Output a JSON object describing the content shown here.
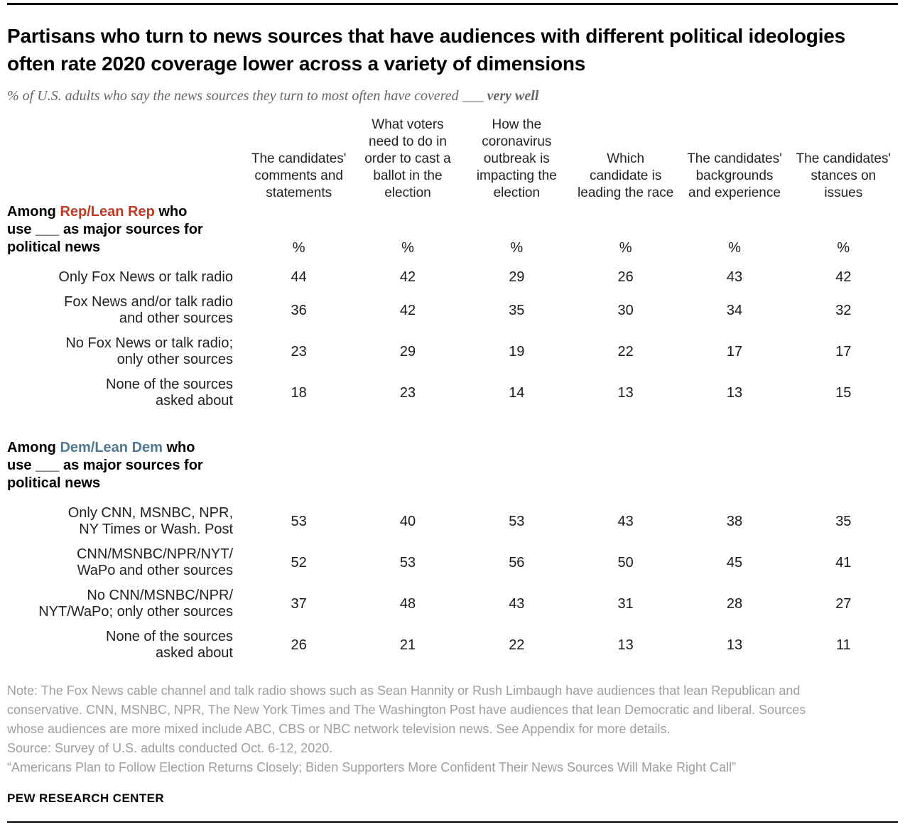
{
  "header": {
    "title": "Partisans who turn to news sources that have audiences with different political ideologies often rate 2020 coverage lower across a variety of dimensions",
    "subtitle_prefix": "% of U.S. adults who say the news sources they turn to most often have covered",
    "subtitle_blank": "___",
    "subtitle_emphasis": "very well"
  },
  "colors": {
    "republican_red": "#bf3927",
    "democrat_blue": "#4e7893",
    "note_gray": "#9e9e9e",
    "subtitle_gray": "#666666"
  },
  "table": {
    "percent_symbol": "%",
    "columns": [
      "The candidates' comments and statements",
      "What voters need to do in order to cast a ballot in the election",
      "How the coronavirus outbreak is impacting the election",
      "Which candidate is leading the race",
      "The candidates' backgrounds and experience",
      "The candidates' stances on issues"
    ],
    "sections": [
      {
        "id": "rep",
        "party_color_key": "republican_red",
        "show_percent_row": true,
        "header_lines": [
          [
            {
              "text": "Among "
            },
            {
              "text": "Rep/Lean Rep",
              "colored": true
            },
            {
              "text": " who"
            }
          ],
          [
            {
              "text": "use ___ as major sources for"
            }
          ],
          [
            {
              "text": "political news"
            }
          ]
        ],
        "rows": [
          {
            "label_lines": [
              "Only Fox News or talk radio"
            ],
            "values": [
              44,
              42,
              29,
              26,
              43,
              42
            ]
          },
          {
            "label_lines": [
              "Fox News and/or talk radio",
              "and other sources"
            ],
            "values": [
              36,
              42,
              35,
              30,
              34,
              32
            ]
          },
          {
            "label_lines": [
              "No Fox News or talk radio;",
              "only other sources"
            ],
            "values": [
              23,
              29,
              19,
              22,
              17,
              17
            ]
          },
          {
            "label_lines": [
              "None of the sources",
              "asked about"
            ],
            "values": [
              18,
              23,
              14,
              13,
              13,
              15
            ]
          }
        ]
      },
      {
        "id": "dem",
        "party_color_key": "democrat_blue",
        "show_percent_row": false,
        "header_lines": [
          [
            {
              "text": "Among "
            },
            {
              "text": "Dem/Lean Dem",
              "colored": true
            },
            {
              "text": " who"
            }
          ],
          [
            {
              "text": "use ___ as major sources for"
            }
          ],
          [
            {
              "text": "political news"
            }
          ]
        ],
        "rows": [
          {
            "label_lines": [
              "Only CNN, MSNBC, NPR,",
              "NY Times or Wash. Post"
            ],
            "values": [
              53,
              40,
              53,
              43,
              38,
              35
            ]
          },
          {
            "label_lines": [
              "CNN/MSNBC/NPR/NYT/",
              "WaPo and other sources"
            ],
            "values": [
              52,
              53,
              56,
              50,
              45,
              41
            ]
          },
          {
            "label_lines": [
              "No CNN/MSNBC/NPR/",
              "NYT/WaPo; only other sources"
            ],
            "values": [
              37,
              48,
              43,
              31,
              28,
              27
            ]
          },
          {
            "label_lines": [
              "None of the sources",
              "asked about"
            ],
            "values": [
              26,
              21,
              22,
              13,
              13,
              11
            ]
          }
        ]
      }
    ]
  },
  "footer": {
    "note": "Note: The Fox News cable channel and talk radio shows such as Sean Hannity or Rush Limbaugh have audiences that lean Republican and conservative. CNN, MSNBC, NPR, The New York Times and The Washington Post have audiences that lean Democratic and liberal. Sources whose audiences are more mixed include ABC, CBS or NBC network television news. See Appendix for more details.",
    "source": "Source: Survey of U.S. adults conducted Oct. 6-12, 2020.",
    "report": "“Americans Plan to Follow Election Returns Closely; Biden Supporters More Confident Their News Sources Will Make Right Call”",
    "brand": "PEW RESEARCH CENTER"
  },
  "chart_data": {
    "type": "table",
    "title": "Partisans who turn to news sources that have audiences with different political ideologies often rate 2020 coverage lower across a variety of dimensions",
    "subtitle": "% of U.S. adults who say the news sources they turn to most often have covered ___ very well",
    "categories": [
      "The candidates' comments and statements",
      "What voters need to do in order to cast a ballot in the election",
      "How the coronavirus outbreak is impacting the election",
      "Which candidate is leading the race",
      "The candidates' backgrounds and experience",
      "The candidates' stances on issues"
    ],
    "sections": [
      {
        "group": "Among Rep/Lean Rep who use ___ as major sources for political news",
        "series": [
          {
            "name": "Only Fox News or talk radio",
            "values": [
              44,
              42,
              29,
              26,
              43,
              42
            ]
          },
          {
            "name": "Fox News and/or talk radio and other sources",
            "values": [
              36,
              42,
              35,
              30,
              34,
              32
            ]
          },
          {
            "name": "No Fox News or talk radio; only other sources",
            "values": [
              23,
              29,
              19,
              22,
              17,
              17
            ]
          },
          {
            "name": "None of the sources asked about",
            "values": [
              18,
              23,
              14,
              13,
              13,
              15
            ]
          }
        ]
      },
      {
        "group": "Among Dem/Lean Dem who use ___ as major sources for political news",
        "series": [
          {
            "name": "Only CNN, MSNBC, NPR, NY Times or Wash. Post",
            "values": [
              53,
              40,
              53,
              43,
              38,
              35
            ]
          },
          {
            "name": "CNN/MSNBC/NPR/NYT/WaPo and other sources",
            "values": [
              52,
              53,
              56,
              50,
              45,
              41
            ]
          },
          {
            "name": "No CNN/MSNBC/NPR/NYT/WaPo; only other sources",
            "values": [
              37,
              48,
              43,
              31,
              28,
              27
            ]
          },
          {
            "name": "None of the sources asked about",
            "values": [
              26,
              21,
              22,
              13,
              13,
              11
            ]
          }
        ]
      }
    ],
    "units": "%"
  }
}
